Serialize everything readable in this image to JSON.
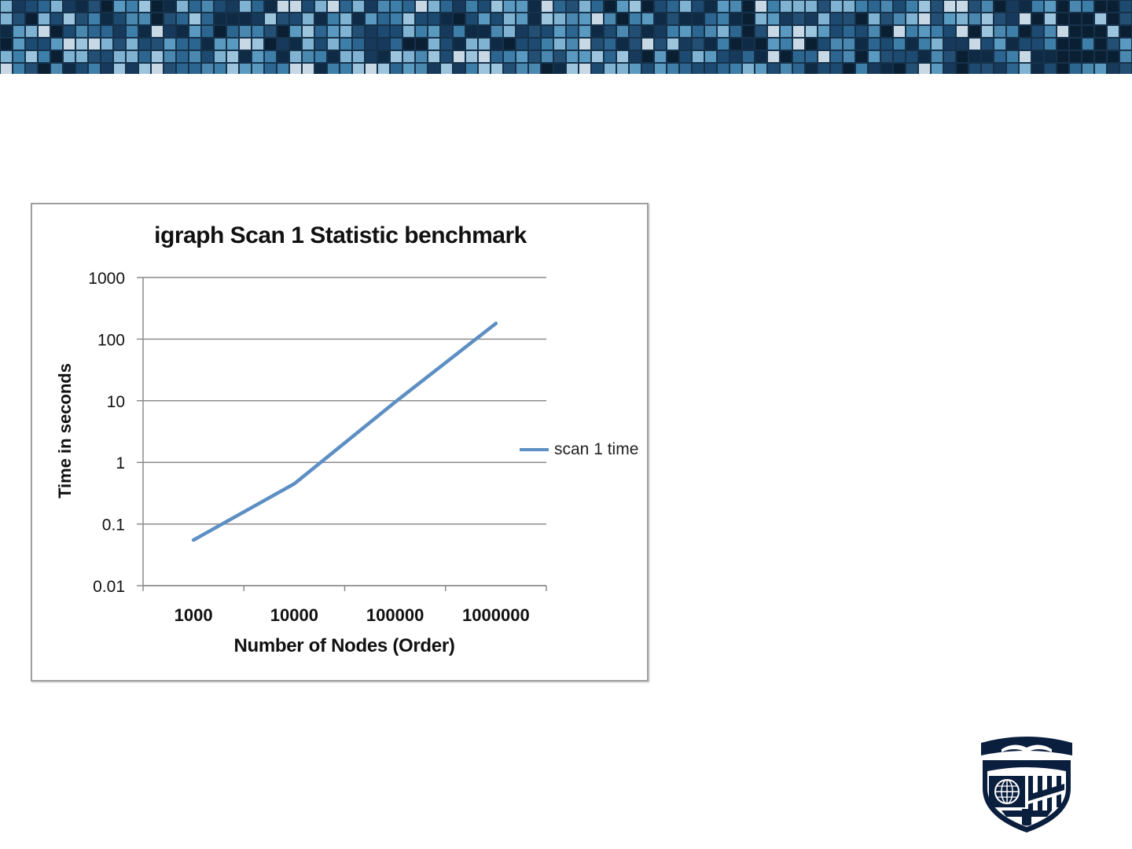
{
  "chart_data": {
    "type": "line",
    "title": "igraph Scan 1 Statistic benchmark",
    "xlabel": "Number of Nodes (Order)",
    "ylabel": "Time in seconds",
    "categories": [
      "1000",
      "10000",
      "100000",
      "1000000"
    ],
    "y_scale": "log",
    "ylim": [
      0.01,
      1000
    ],
    "y_ticks": [
      "1000",
      "100",
      "10",
      "1",
      "0.1",
      "0.01"
    ],
    "series": [
      {
        "name": "scan 1 time",
        "values": [
          0.055,
          0.45,
          9.5,
          180
        ]
      }
    ],
    "legend_position": "right",
    "grid": true
  },
  "colors": {
    "series_line": "#5d8fc4",
    "gridline": "#8c8c8c",
    "frame_border": "#9f9f9f",
    "banner": "#16324b",
    "logo": "#0a1e3d"
  },
  "banner": {
    "icon": "mosaic-banner"
  },
  "logo": {
    "icon": "university-shield-logo"
  }
}
